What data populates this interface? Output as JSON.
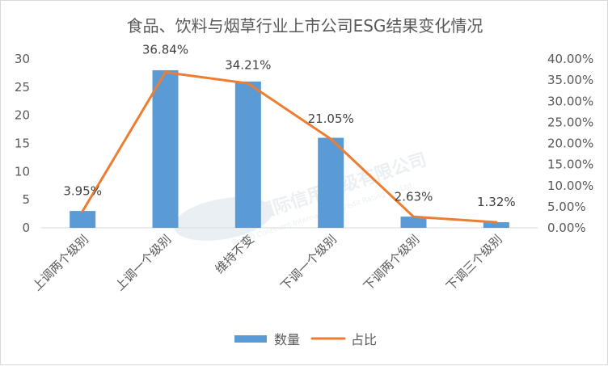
{
  "chart_data": {
    "type": "bar",
    "combo": "bar-line-dual-axis",
    "title": "食品、饮料与烟草行业上市公司ESG结果变化情况",
    "categories": [
      "上调两个级别",
      "上调一个级别",
      "维持不变",
      "下调一个级别",
      "下调两个级别",
      "下调三个级别"
    ],
    "series": [
      {
        "name": "数量",
        "type": "bar",
        "axis": "left",
        "values": [
          3,
          28,
          26,
          16,
          2,
          1
        ],
        "color": "#5b9bd5"
      },
      {
        "name": "占比",
        "type": "line",
        "axis": "right",
        "values": [
          3.95,
          36.84,
          34.21,
          21.05,
          2.63,
          1.32
        ],
        "labels": [
          "3.95%",
          "36.84%",
          "34.21%",
          "21.05%",
          "2.63%",
          "1.32%"
        ],
        "color": "#ed7d31"
      }
    ],
    "left_axis": {
      "ylim": [
        0,
        30
      ],
      "ticks": [
        "0",
        "5",
        "10",
        "15",
        "20",
        "25",
        "30"
      ]
    },
    "right_axis": {
      "ylim": [
        0,
        40
      ],
      "ticks": [
        "0.00%",
        "5.00%",
        "10.00%",
        "15.00%",
        "20.00%",
        "25.00%",
        "30.00%",
        "35.00%",
        "40.00%"
      ]
    },
    "grid": false,
    "legend_position": "bottom",
    "watermark": {
      "text": "联洲国际信用评级有限公司",
      "subtext": "United Continent International Credit Rating Co.,Ltd"
    }
  }
}
